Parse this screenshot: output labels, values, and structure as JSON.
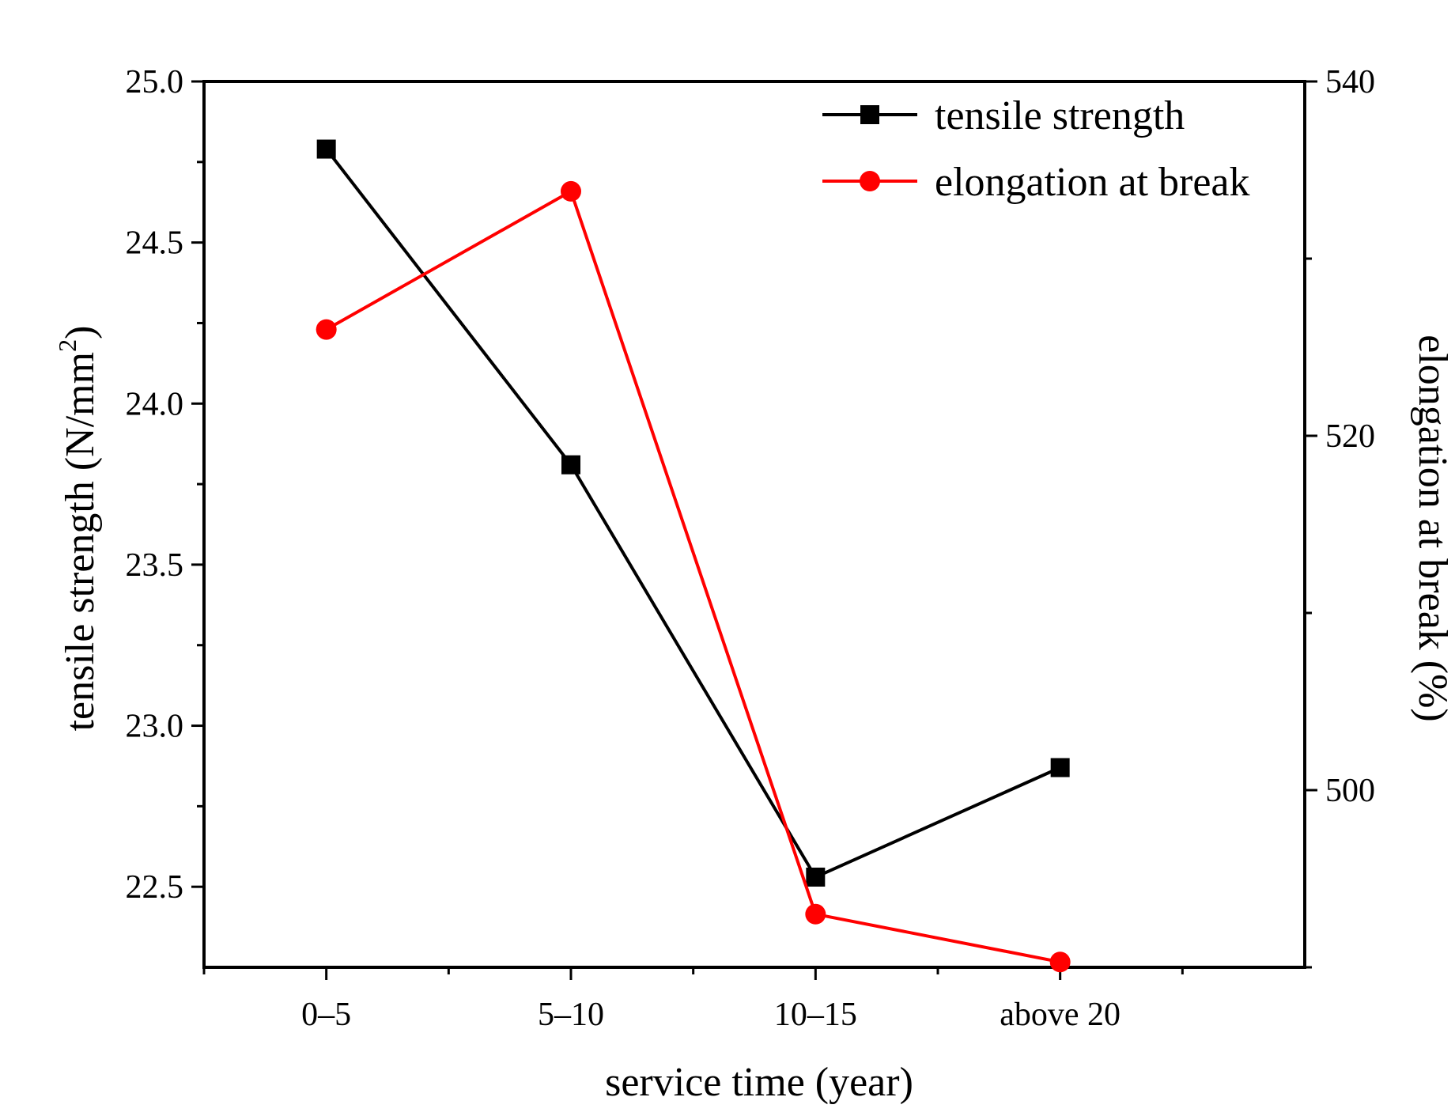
{
  "chart_data": {
    "type": "line",
    "categories": [
      "0–5",
      "5–10",
      "10–15",
      "above 20"
    ],
    "xlabel": "service time (year)",
    "ylabel_left": "tensile strength (N/mm",
    "ylabel_left_sup": "2",
    "ylabel_left_end": ")",
    "ylabel_right": "elongation at break (%)",
    "ylim_left": [
      22.25,
      25.0
    ],
    "ylim_right": [
      490,
      540
    ],
    "yticks_left": [
      "22.5",
      "23.0",
      "23.5",
      "24.0",
      "24.5",
      "25.0"
    ],
    "yticks_right": [
      "500",
      "520",
      "540"
    ],
    "legend_position": "top-right",
    "grid": false,
    "series": [
      {
        "name": "tensile strength",
        "axis": "left",
        "color": "#000000",
        "marker": "square",
        "values": [
          24.79,
          23.81,
          22.53,
          22.87
        ]
      },
      {
        "name": "elongation at break",
        "axis": "right",
        "color": "#ff0000",
        "marker": "circle",
        "values": [
          526.0,
          533.8,
          493.0,
          490.3
        ]
      }
    ]
  }
}
